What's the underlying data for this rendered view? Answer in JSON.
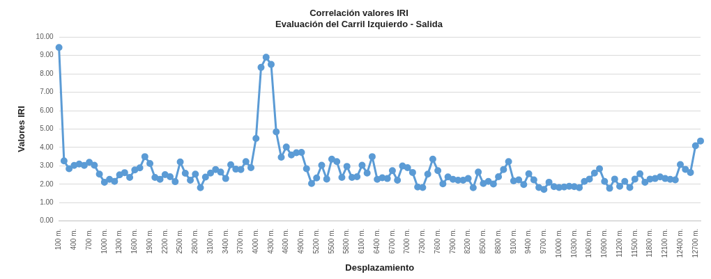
{
  "chart_data": {
    "type": "line",
    "title": "Correlación valores IRI",
    "subtitle": "Evaluación del Carril Izquierdo - Salida",
    "xlabel": "Desplazamiento",
    "ylabel": "Valores IRI",
    "categories": [
      "100 m.",
      null,
      null,
      "400 m.",
      null,
      null,
      "700 m.",
      null,
      null,
      "1000 m.",
      null,
      null,
      "1300 m.",
      null,
      null,
      "1600 m.",
      null,
      null,
      "1900 m.",
      null,
      null,
      "2200 m.",
      null,
      null,
      "2500 m.",
      null,
      null,
      "2800 m.",
      null,
      null,
      "3100 m.",
      null,
      null,
      "3400 m.",
      null,
      null,
      "3700 m.",
      null,
      null,
      "4000 m.",
      null,
      null,
      "4300 m.",
      null,
      null,
      "4600 m.",
      null,
      null,
      "4900 m.",
      null,
      null,
      "5200 m.",
      null,
      null,
      "5500 m.",
      null,
      null,
      "5800 m.",
      null,
      null,
      "6100 m.",
      null,
      null,
      "6400 m.",
      null,
      null,
      "6700 m.",
      null,
      null,
      "7000 m.",
      null,
      null,
      "7300 m.",
      null,
      null,
      "7600 m.",
      null,
      null,
      "7900 m.",
      null,
      null,
      "8200 m.",
      null,
      null,
      "8500 m.",
      null,
      null,
      "8800 m.",
      null,
      null,
      "9100 m.",
      null,
      null,
      "9400 m.",
      null,
      null,
      "9700 m.",
      null,
      null,
      "10000 m.",
      null,
      null,
      "10300 m.",
      null,
      null,
      "10600 m.",
      null,
      null,
      "10900 m.",
      null,
      null,
      "11200 m.",
      null,
      null,
      "11500 m.",
      null,
      null,
      "11800 m.",
      null,
      null,
      "12100 m.",
      null,
      null,
      "12400 m.",
      null,
      null,
      "12700 m.",
      null
    ],
    "series": [
      {
        "color": "#5b9bd5",
        "values": [
          9.43,
          3.27,
          2.84,
          3.02,
          3.1,
          3.02,
          3.19,
          3.03,
          2.55,
          2.11,
          2.27,
          2.15,
          2.51,
          2.63,
          2.37,
          2.78,
          2.89,
          3.5,
          3.13,
          2.37,
          2.27,
          2.52,
          2.41,
          2.14,
          3.21,
          2.6,
          2.22,
          2.55,
          1.81,
          2.39,
          2.61,
          2.8,
          2.66,
          2.31,
          3.06,
          2.82,
          2.8,
          3.23,
          2.9,
          4.49,
          8.35,
          8.9,
          8.51,
          4.85,
          3.47,
          4.02,
          3.59,
          3.71,
          3.73,
          2.84,
          2.04,
          2.34,
          3.03,
          2.28,
          3.36,
          3.23,
          2.37,
          2.97,
          2.37,
          2.41,
          3.03,
          2.61,
          3.5,
          2.27,
          2.35,
          2.31,
          2.74,
          2.22,
          2.99,
          2.9,
          2.64,
          1.85,
          1.82,
          2.55,
          3.36,
          2.74,
          2.02,
          2.4,
          2.27,
          2.22,
          2.22,
          2.31,
          1.81,
          2.66,
          2.04,
          2.15,
          2.01,
          2.41,
          2.8,
          3.23,
          2.18,
          2.24,
          1.98,
          2.57,
          2.24,
          1.82,
          1.72,
          2.11,
          1.87,
          1.82,
          1.85,
          1.89,
          1.87,
          1.81,
          2.15,
          2.28,
          2.61,
          2.84,
          2.15,
          1.78,
          2.28,
          1.89,
          2.15,
          1.82,
          2.28,
          2.57,
          2.11,
          2.28,
          2.31,
          2.4,
          2.31,
          2.27,
          2.24,
          3.07,
          2.81,
          2.64,
          4.09,
          4.35
        ]
      }
    ],
    "ylim": [
      0,
      10
    ],
    "yticks": [
      {
        "value": 0,
        "label": "0.00"
      },
      {
        "value": 1,
        "label": "1.00"
      },
      {
        "value": 2,
        "label": "2.00"
      },
      {
        "value": 3,
        "label": "3.00"
      },
      {
        "value": 4,
        "label": "4.00"
      },
      {
        "value": 5,
        "label": "5.00"
      },
      {
        "value": 6,
        "label": "6.00"
      },
      {
        "value": 7,
        "label": "7.00"
      },
      {
        "value": 8,
        "label": "8.00"
      },
      {
        "value": 9,
        "label": "9.00"
      },
      {
        "value": 10,
        "label": "10.00"
      }
    ],
    "grid": "y",
    "legend": false,
    "marker": "circle",
    "line_style": "solid"
  }
}
